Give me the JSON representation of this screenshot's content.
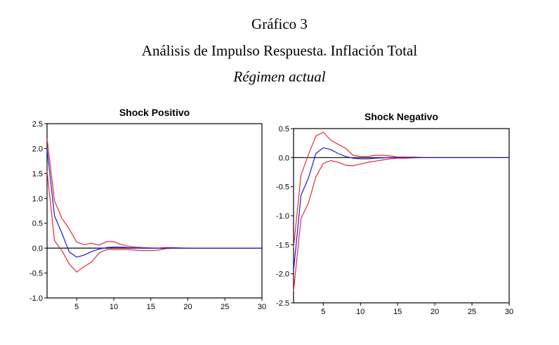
{
  "header": {
    "title": "Gráfico 3",
    "subtitle": "Análisis de Impulso Respuesta. Inflación Total",
    "caption": "Régimen actual"
  },
  "colors": {
    "response": "#1a1adc",
    "band": "#e8283a",
    "axis": "#000000"
  },
  "chart_data": [
    {
      "type": "line",
      "title": "Shock Positivo",
      "xlabel": "",
      "ylabel": "",
      "xlim": [
        1,
        30
      ],
      "ylim": [
        -1.0,
        2.5
      ],
      "xticks": [
        5,
        10,
        15,
        20,
        25,
        30
      ],
      "xtick_labels": [
        "5",
        "10",
        "15",
        "20",
        "25",
        "30"
      ],
      "yticks": [
        -1.0,
        -0.5,
        0.0,
        0.5,
        1.0,
        1.5,
        2.0,
        2.5
      ],
      "ytick_labels": [
        "-1.0",
        "-0.5",
        "0.0",
        "0.5",
        "1.0",
        "1.5",
        "2.0",
        "2.5"
      ],
      "grid": false,
      "zero_line": true,
      "x": [
        1,
        2,
        3,
        4,
        5,
        6,
        7,
        8,
        9,
        10,
        11,
        12,
        13,
        14,
        15,
        16,
        17,
        18,
        19,
        20,
        21,
        22,
        23,
        24,
        25,
        26,
        27,
        28,
        29,
        30
      ],
      "series": [
        {
          "name": "response",
          "color_key": "response",
          "values": [
            2.0,
            0.65,
            0.3,
            -0.08,
            -0.18,
            -0.14,
            -0.07,
            -0.02,
            0.01,
            0.02,
            0.02,
            0.01,
            0.005,
            0.0,
            0.0,
            0.0,
            0.0,
            0.0,
            0.0,
            0.0,
            0.0,
            0.0,
            0.0,
            0.0,
            0.0,
            0.0,
            0.0,
            0.0,
            0.0,
            0.0
          ]
        },
        {
          "name": "upper_band",
          "color_key": "band",
          "values": [
            2.2,
            0.95,
            0.6,
            0.38,
            0.12,
            0.07,
            0.1,
            0.06,
            0.13,
            0.13,
            0.07,
            0.04,
            0.02,
            0.01,
            0.005,
            0.0,
            0.01,
            0.01,
            0.005,
            0.0,
            0.0,
            0.0,
            0.0,
            0.0,
            0.0,
            0.0,
            0.0,
            0.0,
            0.0,
            0.0
          ]
        },
        {
          "name": "lower_band",
          "color_key": "band",
          "values": [
            1.55,
            0.15,
            -0.05,
            -0.32,
            -0.48,
            -0.37,
            -0.28,
            -0.1,
            -0.03,
            -0.03,
            -0.03,
            -0.03,
            -0.04,
            -0.05,
            -0.05,
            -0.04,
            -0.01,
            0.0,
            0.0,
            0.0,
            0.0,
            0.0,
            0.0,
            0.0,
            0.0,
            0.0,
            0.0,
            0.0,
            0.0,
            0.0
          ]
        }
      ]
    },
    {
      "type": "line",
      "title": "Shock Negativo",
      "xlabel": "",
      "ylabel": "",
      "xlim": [
        1,
        30
      ],
      "ylim": [
        -2.5,
        0.5
      ],
      "xticks": [
        5,
        10,
        15,
        20,
        25,
        30
      ],
      "xtick_labels": [
        "5",
        "10",
        "15",
        "20",
        "25",
        "30"
      ],
      "yticks": [
        -2.5,
        -2.0,
        -1.5,
        -1.0,
        -0.5,
        0.0,
        0.5
      ],
      "ytick_labels": [
        "-2.5",
        "-2.0",
        "-1.5",
        "-1.0",
        "-0.5",
        "0.0",
        "0.5"
      ],
      "grid": false,
      "zero_line": true,
      "x": [
        1,
        2,
        3,
        4,
        5,
        6,
        7,
        8,
        9,
        10,
        11,
        12,
        13,
        14,
        15,
        16,
        17,
        18,
        19,
        20,
        21,
        22,
        23,
        24,
        25,
        26,
        27,
        28,
        29,
        30
      ],
      "series": [
        {
          "name": "response",
          "color_key": "response",
          "values": [
            -1.95,
            -0.65,
            -0.35,
            0.07,
            0.17,
            0.14,
            0.07,
            0.02,
            -0.01,
            -0.02,
            -0.02,
            -0.01,
            -0.005,
            0.0,
            0.0,
            0.0,
            0.0,
            0.0,
            0.0,
            0.0,
            0.0,
            0.0,
            0.0,
            0.0,
            0.0,
            0.0,
            0.0,
            0.0,
            0.0,
            0.0
          ]
        },
        {
          "name": "upper_band",
          "color_key": "band",
          "values": [
            -1.55,
            -0.3,
            0.05,
            0.37,
            0.44,
            0.3,
            0.23,
            0.16,
            0.04,
            0.02,
            0.02,
            0.04,
            0.04,
            0.03,
            0.01,
            0.01,
            0.01,
            0.005,
            0.0,
            0.0,
            0.0,
            0.0,
            0.0,
            0.0,
            0.0,
            0.0,
            0.0,
            0.0,
            0.0,
            0.0
          ]
        },
        {
          "name": "lower_band",
          "color_key": "band",
          "values": [
            -2.3,
            -1.05,
            -0.78,
            -0.33,
            -0.1,
            -0.05,
            -0.08,
            -0.13,
            -0.14,
            -0.11,
            -0.08,
            -0.06,
            -0.04,
            -0.02,
            -0.01,
            -0.01,
            -0.005,
            0.0,
            0.0,
            0.0,
            0.0,
            0.0,
            0.0,
            0.0,
            0.0,
            0.0,
            0.0,
            0.0,
            0.0,
            0.0
          ]
        }
      ]
    }
  ]
}
